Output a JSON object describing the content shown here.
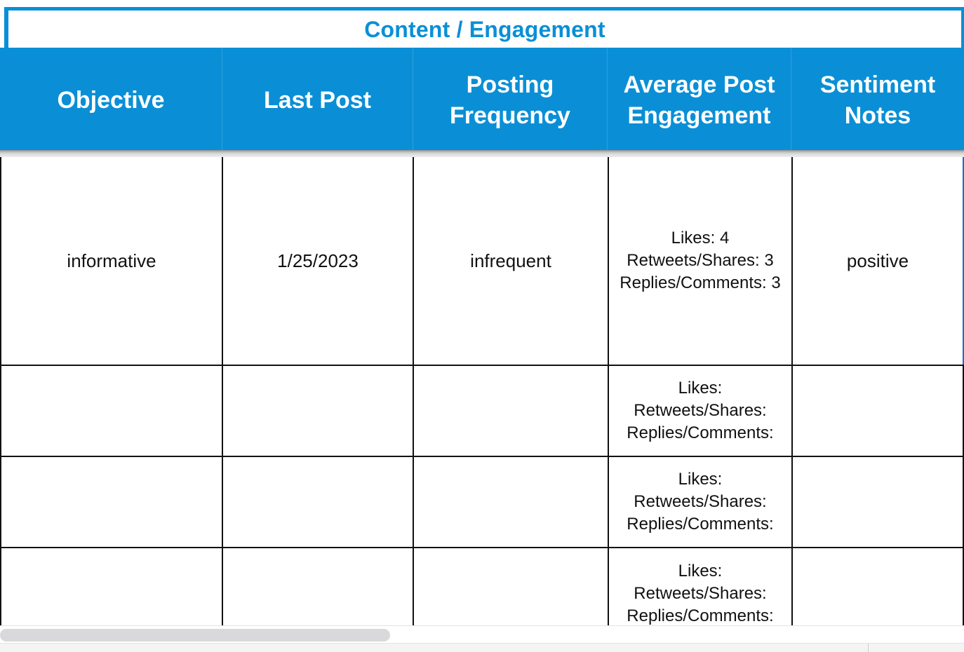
{
  "section_title": "Content / Engagement",
  "columns": [
    {
      "label": "Objective"
    },
    {
      "label": "Last Post"
    },
    {
      "label": "Posting\nFrequency"
    },
    {
      "label": "Average Post\nEngagement"
    },
    {
      "label": "Sentiment\nNotes"
    }
  ],
  "rows": [
    {
      "objective": "informative",
      "last_post": "1/25/2023",
      "frequency": "infrequent",
      "engagement": "Likes: 4\nRetweets/Shares: 3\nReplies/Comments: 3",
      "sentiment": "positive"
    },
    {
      "objective": "",
      "last_post": "",
      "frequency": "",
      "engagement": "Likes:\nRetweets/Shares:\nReplies/Comments:",
      "sentiment": ""
    },
    {
      "objective": "",
      "last_post": "",
      "frequency": "",
      "engagement": "Likes:\nRetweets/Shares:\nReplies/Comments:",
      "sentiment": ""
    },
    {
      "objective": "",
      "last_post": "",
      "frequency": "",
      "engagement": "Likes:\nRetweets/Shares:\nReplies/Comments:",
      "sentiment": ""
    }
  ],
  "colors": {
    "accent": "#0a8fd6",
    "header_text": "#ffffff",
    "grid": "#111111"
  }
}
